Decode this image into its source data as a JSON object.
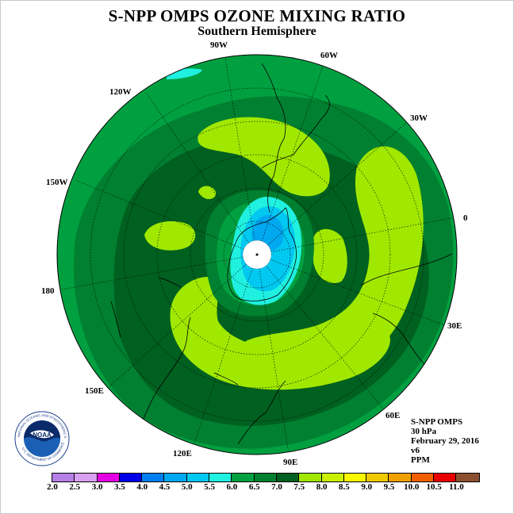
{
  "title": "S-NPP OMPS OZONE MIXING RATIO",
  "subtitle": "Southern Hemisphere",
  "longitude_labels": [
    "90W",
    "60W",
    "120W",
    "30W",
    "150W",
    "0",
    "180",
    "30E",
    "150E",
    "60E",
    "120E",
    "90E"
  ],
  "info": {
    "instrument": "S-NPP OMPS",
    "level": "30 hPa",
    "date": "February 29, 2016",
    "version": "v6",
    "units": "PPM"
  },
  "colorbar": {
    "ticks": [
      "2.0",
      "2.5",
      "3.0",
      "3.5",
      "4.0",
      "4.5",
      "5.0",
      "5.5",
      "6.0",
      "6.5",
      "7.0",
      "7.5",
      "8.0",
      "8.5",
      "9.0",
      "9.5",
      "10.0",
      "10.5",
      "11.0"
    ],
    "colors": [
      "#b77fe8",
      "#d8a0f0",
      "#e400e4",
      "#0000e8",
      "#0080f0",
      "#00a8f0",
      "#00c8f0",
      "#20f0e0",
      "#00a040",
      "#008030",
      "#006020",
      "#a0e800",
      "#c8f000",
      "#f8f800",
      "#f0c800",
      "#f0a000",
      "#f06000",
      "#e80000",
      "#8c5030"
    ]
  },
  "logo": {
    "text": "NOAA",
    "ring_text": "NATIONAL OCEANIC AND ATMOSPHERIC ADMINISTRATION",
    "ring_text_bottom": "U.S. DEPARTMENT OF COMMERCE"
  },
  "colors": {
    "level_6_0": "#00a040",
    "level_6_5": "#008030",
    "level_7_0": "#006020",
    "level_7_5": "#a0e800",
    "cyan": "#20f0e0",
    "light_blue": "#00c8f0"
  }
}
